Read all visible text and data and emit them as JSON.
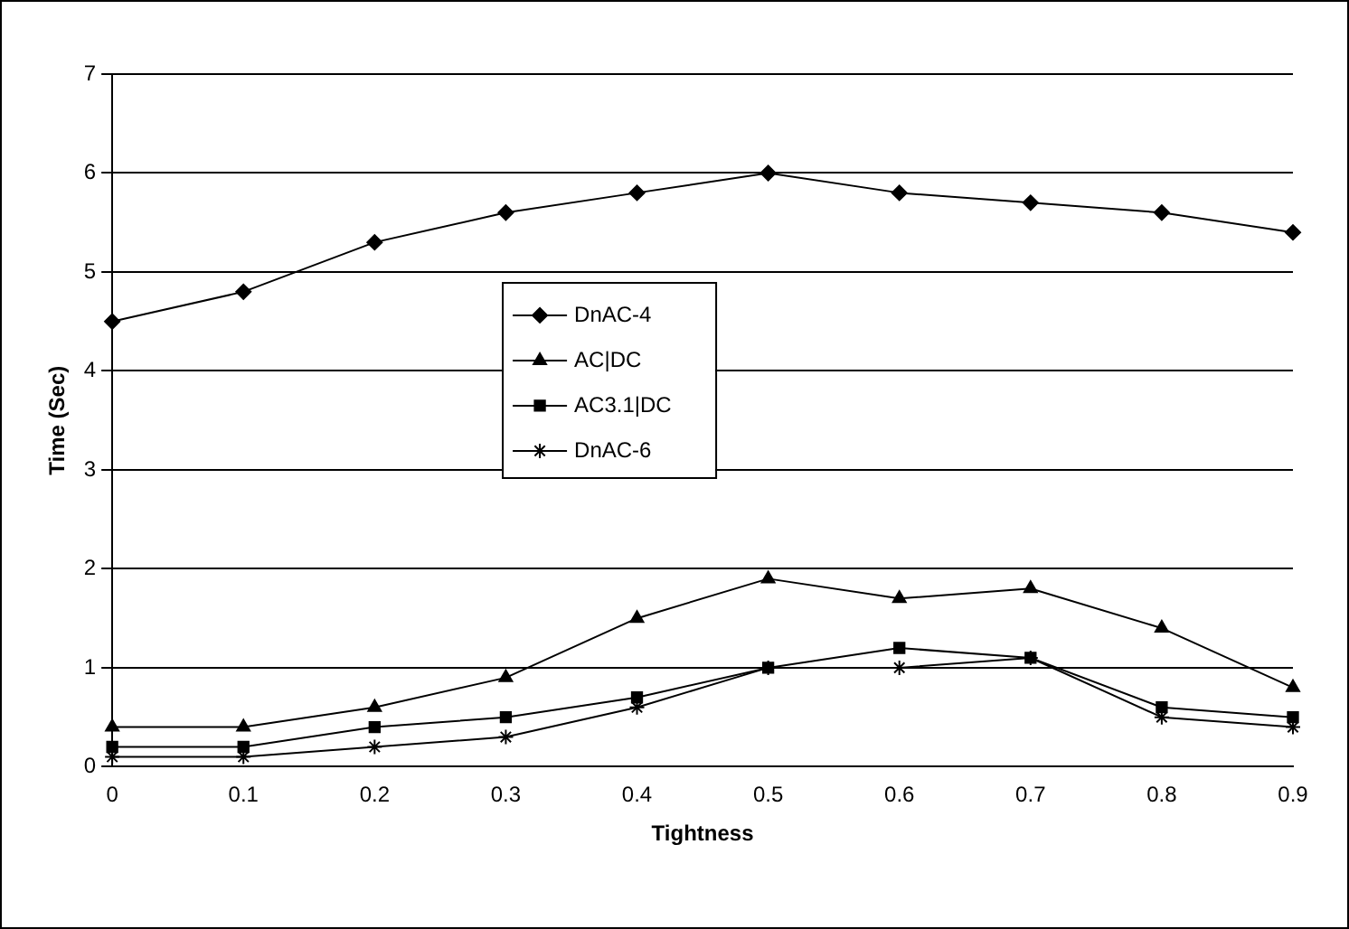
{
  "chart_data": {
    "type": "line",
    "xlabel": "Tightness",
    "ylabel": "Time (Sec)",
    "categories": [
      "0",
      "0.1",
      "0.2",
      "0.3",
      "0.4",
      "0.5",
      "0.6",
      "0.7",
      "0.8",
      "0.9"
    ],
    "series": [
      {
        "name": "DnAC-4",
        "color": "#000000",
        "marker": "diamond",
        "values": [
          4.5,
          4.8,
          5.3,
          5.6,
          5.8,
          6.0,
          5.8,
          5.7,
          5.6,
          5.4
        ]
      },
      {
        "name": "AC|DC",
        "color": "#000000",
        "marker": "triangle",
        "values": [
          0.4,
          0.4,
          0.6,
          0.9,
          1.5,
          1.9,
          1.7,
          1.8,
          1.4,
          0.8
        ]
      },
      {
        "name": "AC3.1|DC",
        "color": "#000000",
        "marker": "square",
        "values": [
          0.2,
          0.2,
          0.4,
          0.5,
          0.7,
          1.0,
          1.2,
          1.1,
          0.6,
          0.5
        ]
      },
      {
        "name": "DnAC-6",
        "color": "#000000",
        "marker": "cross",
        "values": [
          0.1,
          0.1,
          0.2,
          0.3,
          0.6,
          1.0,
          1.0,
          1.1,
          0.5,
          0.4
        ]
      }
    ],
    "ylim": [
      0,
      7
    ],
    "yticks": [
      0,
      1,
      2,
      3,
      4,
      5,
      6,
      7
    ],
    "grid": "y",
    "legend": "center",
    "line_style": "solid"
  }
}
